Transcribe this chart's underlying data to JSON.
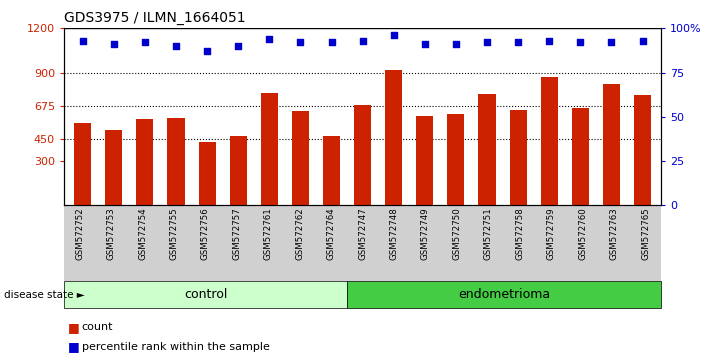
{
  "title": "GDS3975 / ILMN_1664051",
  "samples": [
    "GSM572752",
    "GSM572753",
    "GSM572754",
    "GSM572755",
    "GSM572756",
    "GSM572757",
    "GSM572761",
    "GSM572762",
    "GSM572764",
    "GSM572747",
    "GSM572748",
    "GSM572749",
    "GSM572750",
    "GSM572751",
    "GSM572758",
    "GSM572759",
    "GSM572760",
    "GSM572763",
    "GSM572765"
  ],
  "counts": [
    555,
    510,
    585,
    590,
    430,
    470,
    760,
    640,
    470,
    680,
    920,
    605,
    620,
    755,
    645,
    870,
    660,
    820,
    750
  ],
  "percentiles": [
    93,
    91,
    92,
    90,
    87,
    90,
    94,
    92,
    92,
    93,
    96,
    91,
    91,
    92,
    92,
    93,
    92,
    92,
    93
  ],
  "control_count": 9,
  "endometrioma_count": 10,
  "ylim_left": [
    0,
    1200
  ],
  "ylim_right": [
    0,
    100
  ],
  "yticks_left": [
    300,
    450,
    675,
    900,
    1200
  ],
  "yticks_right": [
    0,
    25,
    50,
    75,
    100
  ],
  "ytick_labels_right": [
    "0",
    "25",
    "50",
    "75",
    "100%"
  ],
  "bar_color": "#cc2200",
  "dot_color": "#0000cc",
  "sample_label_bg": "#d0d0d0",
  "control_bg": "#ccffcc",
  "endometrioma_bg": "#44cc44",
  "plot_bg": "white",
  "legend_count_label": "count",
  "legend_percentile_label": "percentile rank within the sample"
}
